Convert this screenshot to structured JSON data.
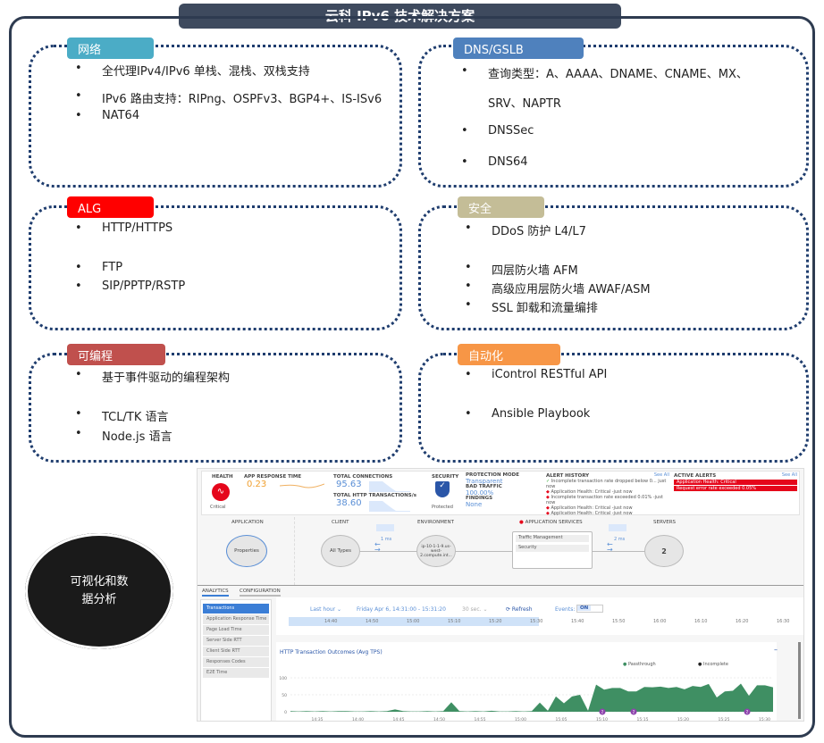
{
  "title": "云科 IPv6 技术解决方案",
  "sections": [
    {
      "tag": "网络",
      "color": "#4bacc6",
      "items": [
        "全代理IPv4/IPv6 单栈、混栈、双栈支持",
        "IPv6 路由支持：RIPng、OSPFv3、BGP4+、IS-ISv6",
        "NAT64"
      ]
    },
    {
      "tag": "DNS/GSLB",
      "color": "#4f81bd",
      "items": [
        "查询类型：A、AAAA、DNAME、CNAME、MX、",
        "SRV、NAPTR",
        "DNSSec",
        "DNS64"
      ]
    },
    {
      "tag": "ALG",
      "color": "#ff0000",
      "items": [
        "HTTP/HTTPS",
        "FTP",
        "SIP/PPTP/RSTP"
      ]
    },
    {
      "tag": "安全",
      "color": "#c4bd97",
      "items": [
        "DDoS 防护 L4/L7",
        "四层防火墙 AFM",
        "高级应用层防火墙 AWAF/ASM",
        "SSL 卸载和流量编排"
      ]
    },
    {
      "tag": "可编程",
      "color": "#c0504d",
      "items": [
        "基于事件驱动的编程架构",
        "TCL/TK 语言",
        "Node.js 语言"
      ]
    },
    {
      "tag": "自动化",
      "color": "#f79646",
      "items": [
        "iControl RESTful API",
        "Ansible Playbook"
      ]
    }
  ],
  "oval": {
    "line1": "可视化和数",
    "line2": "据分析"
  },
  "dashboard": {
    "health": {
      "label": "HEALTH",
      "status": "Critical"
    },
    "art": {
      "label": "APP RESPONSE TIME",
      "value": "0.23"
    },
    "conn": {
      "label": "TOTAL CONNECTIONS",
      "value": "95.63",
      "label2": "TOTAL HTTP TRANSACTIONS/s",
      "value2": "38.60"
    },
    "security": {
      "label": "SECURITY",
      "status": "Protected"
    },
    "protection": {
      "mode_label": "PROTECTION MODE",
      "mode": "Transparent",
      "bad_label": "BAD TRAFFIC",
      "bad": "100.00%",
      "find_label": "FINDINGS",
      "find": "None"
    },
    "alert_history": {
      "label": "ALERT HISTORY",
      "see_all": "See All",
      "items": [
        "Incomplete transaction rate dropped below 0... just now",
        "Application Health: Critical -just now",
        "Incomplete transaction rate exceeded 0.01% -just now",
        "Application Health: Critical -just now",
        "Application Health: Critical -just now"
      ]
    },
    "active_alerts": {
      "label": "ACTIVE ALERTS",
      "see_all": "See All",
      "items": [
        "Application Health: Critical",
        "Request error rate exceeded 0.05%"
      ]
    },
    "topology": {
      "application": "APPLICATION",
      "client": "CLIENT",
      "environment": "ENVIRONMENT",
      "app_services": "APPLICATION SERVICES",
      "servers": "SERVERS",
      "properties": "Properties",
      "all_types": "All Types",
      "env_node": "ip-10-1-1-9.us-west-2.compute.int...",
      "latency1": "1 ms",
      "latency2": "2 ms",
      "svc1": "Traffic Management",
      "svc2": "Security",
      "server_count": "2"
    },
    "tabs": [
      "ANALYTICS",
      "CONFIGURATION"
    ],
    "menu": [
      "Transactions",
      "Application Response Time",
      "Page Load Time",
      "Server Side RTT",
      "Client Side RTT",
      "Responses Codes",
      "E2E Time"
    ],
    "toolbar": {
      "range": "Last hour ⌄",
      "date": "Friday Apr 6, 14:31:00 - 15:31:20",
      "interval": "30 sec. ⌄",
      "refresh": "⟳ Refresh",
      "events": "Events:",
      "events_state": "ON"
    },
    "timeline": [
      "14:40",
      "14:50",
      "15:00",
      "15:10",
      "15:20",
      "15:30",
      "15:40",
      "15:50",
      "16:00",
      "16:10",
      "16:20",
      "16:30"
    ],
    "timeline_selected_fraction": 0.5
  },
  "chart_data": {
    "type": "area",
    "title": "HTTP Transaction Outcomes (Avg TPS)",
    "legend": [
      "Passthrough",
      "Incomplete"
    ],
    "legend_placement": "top-right",
    "colors": {
      "Passthrough": "#3f8f63",
      "Incomplete": "#222222"
    },
    "ylim": [
      0,
      100
    ],
    "yticks": [
      "0",
      "50",
      "100"
    ],
    "xticks": [
      "14:35",
      "14:40",
      "14:45",
      "14:50",
      "14:55",
      "15:00",
      "15:05",
      "15:10",
      "15:15",
      "15:20",
      "15:25",
      "15:30"
    ],
    "series": [
      {
        "name": "Passthrough",
        "values": [
          2,
          1,
          2,
          1,
          2,
          1,
          2,
          2,
          1,
          1,
          2,
          1,
          2,
          7,
          2,
          1,
          1,
          2,
          1,
          2,
          28,
          2,
          1,
          2,
          1,
          3,
          1,
          1,
          2,
          1,
          2,
          27,
          3,
          45,
          25,
          45,
          50,
          3,
          80,
          65,
          70,
          70,
          60,
          60,
          73,
          72,
          74,
          70,
          73,
          66,
          76,
          73,
          82,
          42,
          60,
          62,
          83,
          47,
          78,
          78,
          72
        ]
      }
    ],
    "event_markers": [
      "2",
      "2",
      "2"
    ]
  }
}
